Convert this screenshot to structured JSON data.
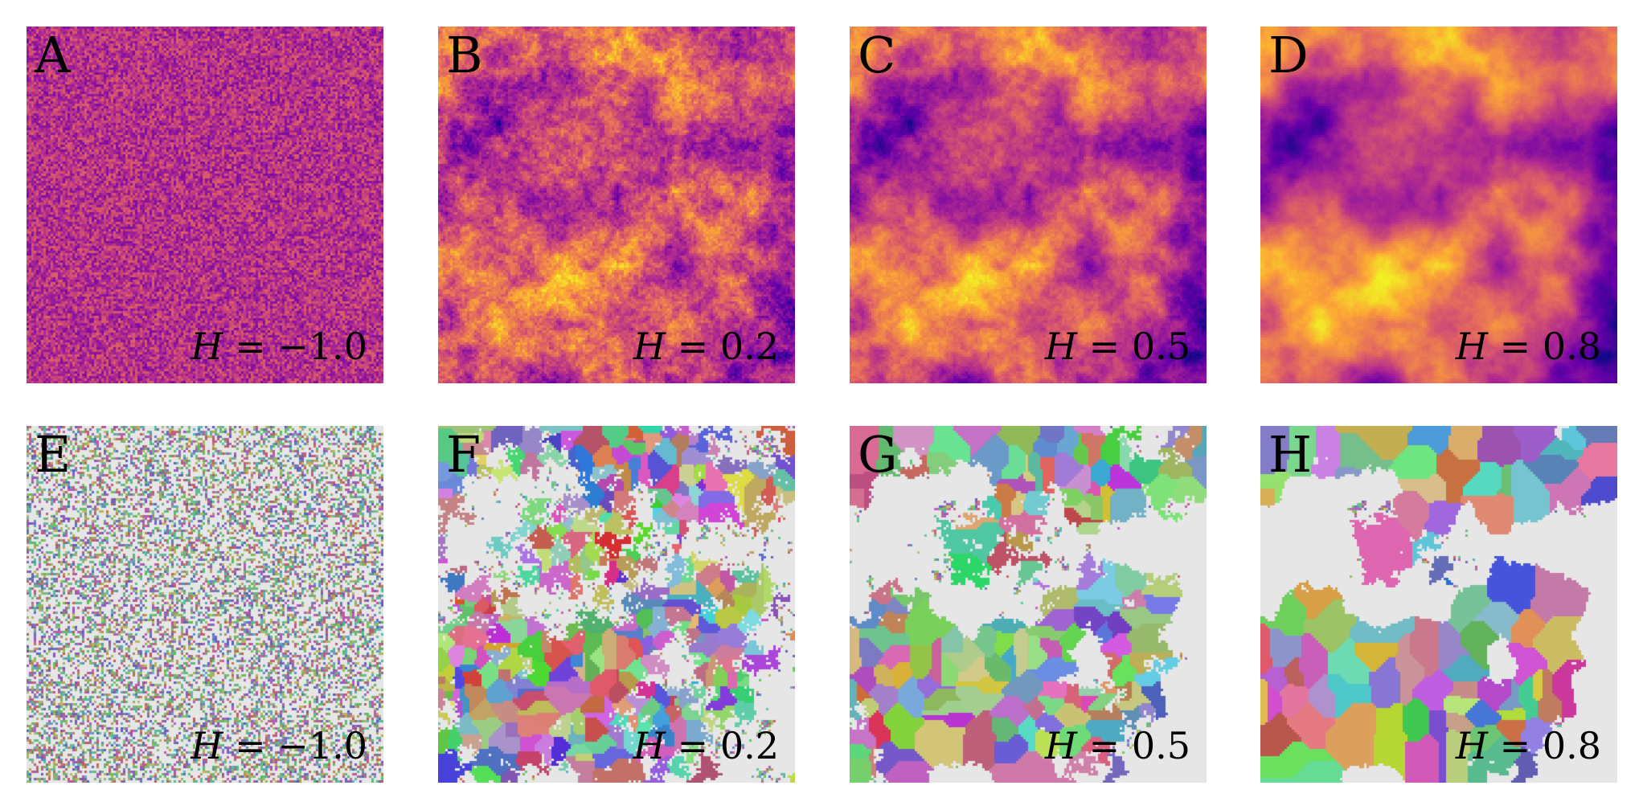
{
  "figure": {
    "rows": [
      {
        "row": "fields",
        "panels": [
          {
            "letter": "A",
            "h_var": "H",
            "h_rest": " = −1.0",
            "h_value": -1.0,
            "style": "field"
          },
          {
            "letter": "B",
            "h_var": "H",
            "h_rest": " = 0.2",
            "h_value": 0.2,
            "style": "field"
          },
          {
            "letter": "C",
            "h_var": "H",
            "h_rest": " = 0.5",
            "h_value": 0.5,
            "style": "field"
          },
          {
            "letter": "D",
            "h_var": "H",
            "h_rest": " = 0.8",
            "h_value": 0.8,
            "style": "field"
          }
        ]
      },
      {
        "row": "clusters",
        "panels": [
          {
            "letter": "E",
            "h_var": "H",
            "h_rest": " = −1.0",
            "h_value": -1.0,
            "style": "clusters"
          },
          {
            "letter": "F",
            "h_var": "H",
            "h_rest": " = 0.2",
            "h_value": 0.2,
            "style": "clusters"
          },
          {
            "letter": "G",
            "h_var": "H",
            "h_rest": " = 0.5",
            "h_value": 0.5,
            "style": "clusters"
          },
          {
            "letter": "H",
            "h_var": "H",
            "h_rest": " = 0.8",
            "h_value": 0.8,
            "style": "clusters"
          }
        ]
      }
    ],
    "colormap": [
      "#0d0887",
      "#6a00a8",
      "#b12a90",
      "#e16462",
      "#fca636",
      "#f0f921"
    ],
    "background_color": "#e6e6e6"
  }
}
